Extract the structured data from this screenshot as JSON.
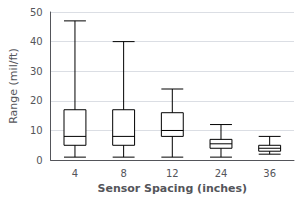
{
  "chart_data": {
    "type": "boxplot",
    "xlabel": "Sensor Spacing (inches)",
    "ylabel": "Range (mil/ft)",
    "categories": [
      "4",
      "8",
      "12",
      "24",
      "36"
    ],
    "values": [
      [
        1.0,
        5.0,
        8.0,
        17.0,
        47.0
      ],
      [
        1.0,
        5.0,
        8.0,
        17.0,
        40.0
      ],
      [
        1.0,
        8.0,
        10.0,
        16.0,
        24.0
      ],
      [
        1.0,
        4.0,
        5.5,
        7.0,
        12.0
      ],
      [
        2.0,
        3.0,
        4.0,
        5.0,
        8.0
      ]
    ],
    "color": "#000000",
    "ylim": [
      0,
      50
    ],
    "yticks": [
      0,
      10,
      20,
      30,
      40,
      50
    ],
    "grid": true
  }
}
